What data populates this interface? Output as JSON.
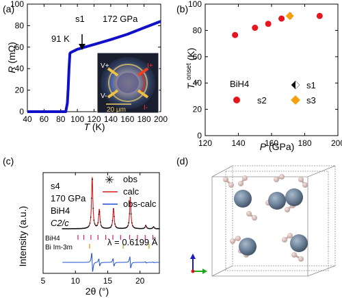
{
  "chart_data": [
    {
      "panel": "(a)",
      "type": "line",
      "xlabel_var": "T",
      "xlabel_unit": " (K)",
      "ylabel_var": "R",
      "ylabel_unit": " (mΩ)",
      "xlim": [
        40,
        200
      ],
      "ylim": [
        0,
        100
      ],
      "xticks": [
        "40",
        "60",
        "80",
        "100",
        "120",
        "140",
        "160",
        "180",
        "200"
      ],
      "yticks": [
        "0",
        "20",
        "40",
        "60",
        "80",
        "100"
      ],
      "annotations": {
        "sample": "s1",
        "pressure": "172 GPa",
        "tc": "91 K"
      },
      "inset": {
        "scale_bar": "20 μm",
        "labels": [
          "V+",
          "V-",
          "I+",
          "I-"
        ]
      },
      "series": [
        {
          "color": "#1010c8",
          "x": [
            40,
            50,
            60,
            70,
            80,
            86,
            88,
            89,
            90,
            91,
            92,
            100,
            120,
            140,
            160,
            180,
            200
          ],
          "y": [
            0,
            0,
            0,
            0,
            0,
            0,
            8,
            22,
            40,
            54,
            55,
            58,
            62.5,
            67,
            72,
            78,
            84
          ]
        }
      ]
    },
    {
      "panel": "(b)",
      "type": "scatter",
      "xlabel_var": "P",
      "xlabel_unit": " (GPa)",
      "ylabel_var": "T",
      "ylabel_sub": "c",
      "ylabel_sup": "onset",
      "ylabel_unit": " (K)",
      "xlim": [
        120,
        200
      ],
      "ylim": [
        0,
        100
      ],
      "xticks": [
        "120",
        "140",
        "160",
        "180",
        "200"
      ],
      "yticks": [
        "0",
        "20",
        "40",
        "60",
        "80",
        "100"
      ],
      "legend_title": "BiH4",
      "legend_placement": "bottom",
      "series": [
        {
          "name": "s1",
          "marker": "half-diamond",
          "color": "#111111",
          "x": [
            172
          ],
          "y": [
            91
          ]
        },
        {
          "name": "s2",
          "marker": "circle",
          "color": "#e8141e",
          "x": [
            138,
            150,
            158,
            166,
            189
          ],
          "y": [
            76.5,
            82,
            85,
            89,
            91
          ]
        },
        {
          "name": "s3",
          "marker": "diamond",
          "color": "#f5a00e",
          "x": [
            171
          ],
          "y": [
            91
          ]
        }
      ]
    },
    {
      "panel": "(c)",
      "type": "line",
      "xlabel": "2θ (°)",
      "ylabel": "Intensity (a.u.)",
      "xlim": [
        5,
        23
      ],
      "xticks": [
        "5",
        "10",
        "15",
        "20"
      ],
      "annotations": {
        "sample": "s4",
        "pressure": "170 GPa",
        "compound": "BiH4",
        "space_group": "C2/c",
        "wavelength": "λ = 0.6199 Å"
      },
      "phase_labels": [
        "BiH4",
        "Bi  Im-3m"
      ],
      "bih4_ticks": [
        10.4,
        11.3,
        12.4,
        13.5,
        14.7,
        15.8,
        17.0,
        18.4,
        19.6,
        20.8,
        22.0
      ],
      "bi_ticks": [
        12.2,
        17.4,
        21.4
      ],
      "peaks": [
        {
          "x": 12.6,
          "h": 150
        },
        {
          "x": 13.7,
          "h": 56
        },
        {
          "x": 15.9,
          "h": 60
        },
        {
          "x": 18.5,
          "h": 91
        },
        {
          "x": 20.9,
          "h": 10
        },
        {
          "x": 22.1,
          "h": 6
        }
      ],
      "series": [
        {
          "name": "obs",
          "marker": "asterisk",
          "color": "#111111"
        },
        {
          "name": "calc",
          "color": "#d7191c"
        },
        {
          "name": "obs-calc",
          "color": "#1f4fd6"
        }
      ]
    },
    {
      "panel": "(d)",
      "type": "diagram",
      "content": "crystal structure",
      "colors": {
        "bi": "#6d8299",
        "h": "#dcc0bc",
        "cell": "#8a8a8a",
        "axis_x": "#18a818",
        "axis_y": "#1818c8",
        "axis_z": "#d01818"
      }
    }
  ]
}
